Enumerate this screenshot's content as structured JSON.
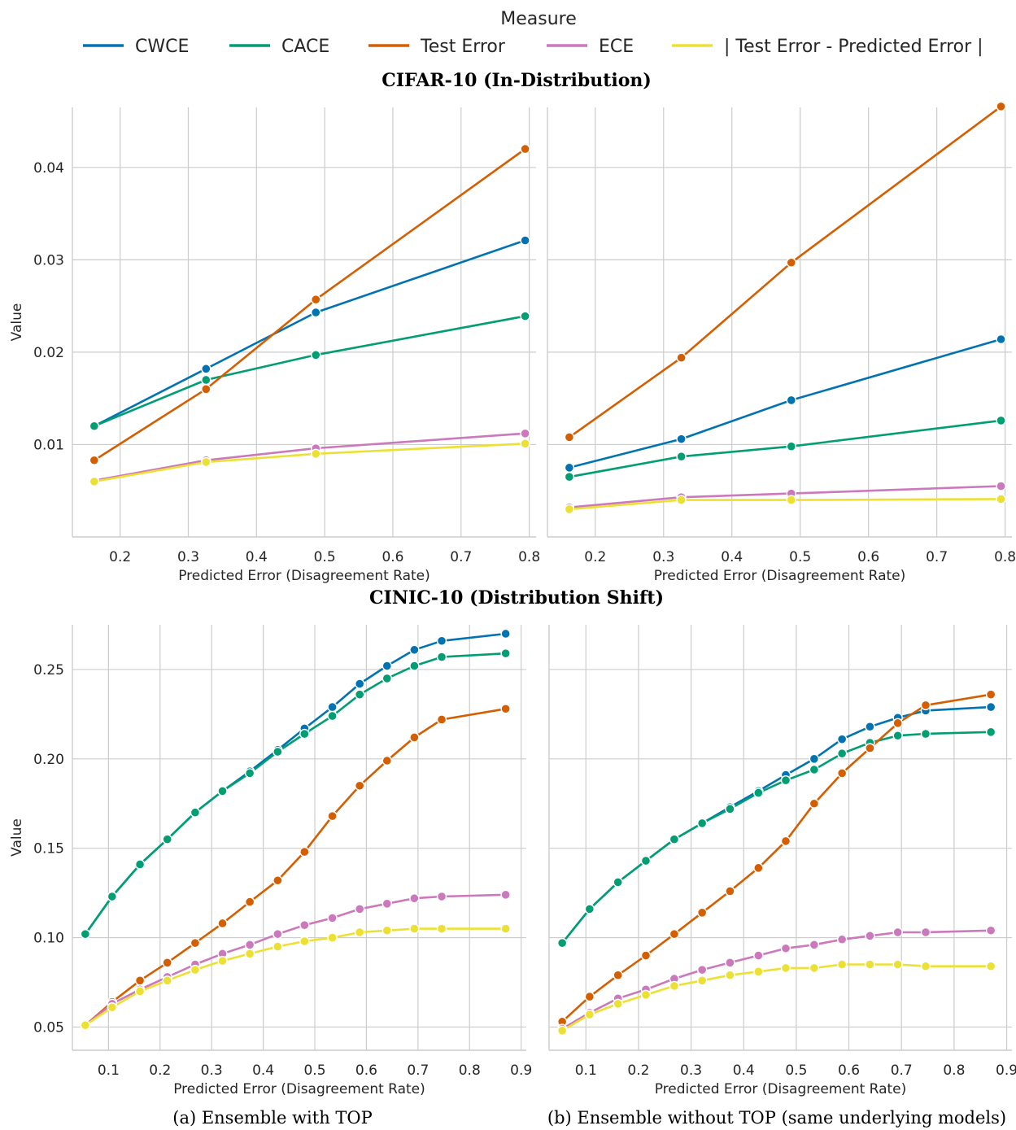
{
  "legend": {
    "title": "Measure",
    "entries": [
      {
        "label": "CWCE",
        "color": "#0173b2"
      },
      {
        "label": "CACE",
        "color": "#029e73"
      },
      {
        "label": "Test Error",
        "color": "#d55e00"
      },
      {
        "label": "ECE",
        "color": "#cc78bc"
      },
      {
        "label": "| Test Error - Predicted Error |",
        "color": "#ece133"
      }
    ]
  },
  "sections": {
    "top_title": "CIFAR-10 (In-Distribution)",
    "bottom_title": "CINIC-10 (Distribution Shift)"
  },
  "captions": {
    "a": "(a) Ensemble with TOP",
    "b": "(b) Ensemble without TOP (same underlying models)"
  },
  "chart_data": [
    {
      "type": "line",
      "xlabel": "Predicted Error (Disagreement Rate)",
      "ylabel": "Value",
      "xlim": [
        0.13,
        0.81
      ],
      "ylim": [
        0.0,
        0.0465
      ],
      "xticks": [
        "0.2",
        "0.3",
        "0.4",
        "0.5",
        "0.6",
        "0.7",
        "0.8"
      ],
      "yticks": [
        "0.01",
        "0.02",
        "0.03",
        "0.04"
      ],
      "grid": true,
      "x": [
        0.162,
        0.326,
        0.487,
        0.794
      ],
      "series": [
        {
          "name": "CWCE",
          "values": [
            0.012,
            0.0182,
            0.0243,
            0.0321
          ]
        },
        {
          "name": "CACE",
          "values": [
            0.012,
            0.017,
            0.0197,
            0.0239
          ]
        },
        {
          "name": "Test Error",
          "values": [
            0.0083,
            0.016,
            0.0257,
            0.042
          ]
        },
        {
          "name": "ECE",
          "values": [
            0.0061,
            0.0083,
            0.0096,
            0.0112
          ]
        },
        {
          "name": "| Test Error - Predicted Error |",
          "values": [
            0.006,
            0.0081,
            0.009,
            0.0101
          ]
        }
      ]
    },
    {
      "type": "line",
      "xlabel": "Predicted Error (Disagreement Rate)",
      "ylabel": "",
      "xlim": [
        0.13,
        0.81
      ],
      "ylim": [
        0.0,
        0.0465
      ],
      "xticks": [
        "0.2",
        "0.3",
        "0.4",
        "0.5",
        "0.6",
        "0.7",
        "0.8"
      ],
      "yticks": [],
      "grid": true,
      "x": [
        0.162,
        0.326,
        0.487,
        0.794
      ],
      "series": [
        {
          "name": "CWCE",
          "values": [
            0.0075,
            0.0106,
            0.0148,
            0.0214
          ]
        },
        {
          "name": "CACE",
          "values": [
            0.0065,
            0.0087,
            0.0098,
            0.0126
          ]
        },
        {
          "name": "Test Error",
          "values": [
            0.0108,
            0.0194,
            0.0297,
            0.0466
          ]
        },
        {
          "name": "ECE",
          "values": [
            0.0032,
            0.0043,
            0.0047,
            0.0055
          ]
        },
        {
          "name": "| Test Error - Predicted Error |",
          "values": [
            0.003,
            0.004,
            0.004,
            0.0041
          ]
        }
      ]
    },
    {
      "type": "line",
      "xlabel": "Predicted Error (Disagreement Rate)",
      "ylabel": "Value",
      "xlim": [
        0.03,
        0.91
      ],
      "ylim": [
        0.037,
        0.275
      ],
      "xticks": [
        "0.1",
        "0.2",
        "0.3",
        "0.4",
        "0.5",
        "0.6",
        "0.7",
        "0.8",
        "0.9"
      ],
      "yticks": [
        "0.05",
        "0.10",
        "0.15",
        "0.20",
        "0.25"
      ],
      "grid": true,
      "x": [
        0.055,
        0.107,
        0.161,
        0.214,
        0.268,
        0.321,
        0.374,
        0.428,
        0.48,
        0.534,
        0.587,
        0.64,
        0.693,
        0.746,
        0.87
      ],
      "series": [
        {
          "name": "CWCE",
          "values": [
            0.102,
            0.123,
            0.141,
            0.155,
            0.17,
            0.182,
            0.193,
            0.205,
            0.217,
            0.229,
            0.242,
            0.252,
            0.261,
            0.266,
            0.27
          ]
        },
        {
          "name": "CACE",
          "values": [
            0.102,
            0.123,
            0.141,
            0.155,
            0.17,
            0.182,
            0.192,
            0.204,
            0.214,
            0.224,
            0.236,
            0.245,
            0.252,
            0.257,
            0.259
          ]
        },
        {
          "name": "Test Error",
          "values": [
            0.051,
            0.064,
            0.076,
            0.086,
            0.097,
            0.108,
            0.12,
            0.132,
            0.148,
            0.168,
            0.185,
            0.199,
            0.212,
            0.222,
            0.228
          ]
        },
        {
          "name": "ECE",
          "values": [
            0.051,
            0.063,
            0.071,
            0.078,
            0.085,
            0.091,
            0.096,
            0.102,
            0.107,
            0.111,
            0.116,
            0.119,
            0.122,
            0.123,
            0.124
          ]
        },
        {
          "name": "| Test Error - Predicted Error |",
          "values": [
            0.051,
            0.061,
            0.07,
            0.076,
            0.082,
            0.087,
            0.091,
            0.095,
            0.098,
            0.1,
            0.103,
            0.104,
            0.105,
            0.105,
            0.105
          ]
        }
      ]
    },
    {
      "type": "line",
      "xlabel": "Predicted Error (Disagreement Rate)",
      "ylabel": "",
      "xlim": [
        0.03,
        0.91
      ],
      "ylim": [
        0.037,
        0.275
      ],
      "xticks": [
        "0.1",
        "0.2",
        "0.3",
        "0.4",
        "0.5",
        "0.6",
        "0.7",
        "0.8",
        "0.9"
      ],
      "yticks": [],
      "grid": true,
      "x": [
        0.055,
        0.107,
        0.161,
        0.214,
        0.268,
        0.321,
        0.374,
        0.428,
        0.48,
        0.534,
        0.587,
        0.64,
        0.693,
        0.746,
        0.87
      ],
      "series": [
        {
          "name": "CWCE",
          "values": [
            0.097,
            0.116,
            0.131,
            0.143,
            0.155,
            0.164,
            0.173,
            0.182,
            0.191,
            0.2,
            0.211,
            0.218,
            0.223,
            0.227,
            0.229
          ]
        },
        {
          "name": "CACE",
          "values": [
            0.097,
            0.116,
            0.131,
            0.143,
            0.155,
            0.164,
            0.172,
            0.181,
            0.188,
            0.194,
            0.203,
            0.209,
            0.213,
            0.214,
            0.215
          ]
        },
        {
          "name": "Test Error",
          "values": [
            0.053,
            0.067,
            0.079,
            0.09,
            0.102,
            0.114,
            0.126,
            0.139,
            0.154,
            0.175,
            0.192,
            0.206,
            0.22,
            0.23,
            0.236
          ]
        },
        {
          "name": "ECE",
          "values": [
            0.049,
            0.058,
            0.066,
            0.071,
            0.077,
            0.082,
            0.086,
            0.09,
            0.094,
            0.096,
            0.099,
            0.101,
            0.103,
            0.103,
            0.104
          ]
        },
        {
          "name": "| Test Error - Predicted Error |",
          "values": [
            0.048,
            0.057,
            0.063,
            0.068,
            0.073,
            0.076,
            0.079,
            0.081,
            0.083,
            0.083,
            0.085,
            0.085,
            0.085,
            0.084,
            0.084
          ]
        }
      ]
    }
  ]
}
